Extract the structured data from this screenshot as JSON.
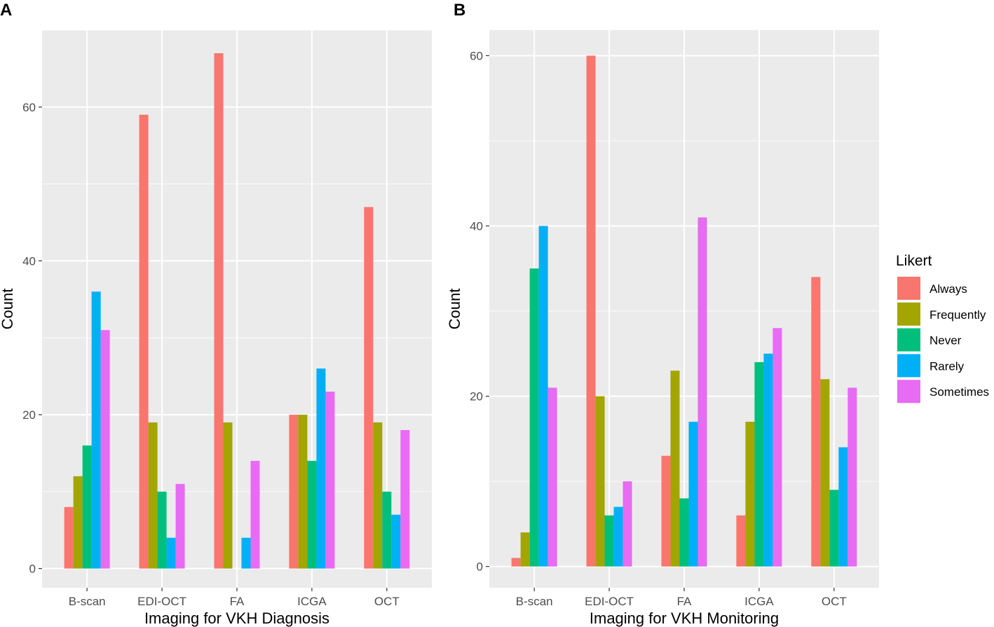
{
  "legend": {
    "title": "Likert",
    "entries": [
      "Always",
      "Frequently",
      "Never",
      "Rarely",
      "Sometimes"
    ],
    "colors": [
      "#F8766D",
      "#A3A500",
      "#00BF7D",
      "#00B0F6",
      "#E76BF3"
    ]
  },
  "chart_data": [
    {
      "type": "bar",
      "panel_label": "A",
      "title": "",
      "xlabel": "Imaging for VKH Diagnosis",
      "ylabel": "Count",
      "categories": [
        "B-scan",
        "EDI-OCT",
        "FA",
        "ICGA",
        "OCT"
      ],
      "ylim": [
        -2.5,
        70
      ],
      "yticks": [
        0,
        20,
        40,
        60
      ],
      "series": [
        {
          "name": "Always",
          "values": [
            8,
            59,
            67,
            20,
            47
          ]
        },
        {
          "name": "Frequently",
          "values": [
            12,
            19,
            19,
            20,
            19
          ]
        },
        {
          "name": "Never",
          "values": [
            16,
            10,
            0,
            14,
            10
          ]
        },
        {
          "name": "Rarely",
          "values": [
            36,
            4,
            4,
            26,
            7
          ]
        },
        {
          "name": "Sometimes",
          "values": [
            31,
            11,
            14,
            23,
            18
          ]
        }
      ]
    },
    {
      "type": "bar",
      "panel_label": "B",
      "title": "",
      "xlabel": "Imaging for VKH Monitoring",
      "ylabel": "Count",
      "categories": [
        "B-scan",
        "EDI-OCT",
        "FA",
        "ICGA",
        "OCT"
      ],
      "ylim": [
        -2.5,
        63
      ],
      "yticks": [
        0,
        20,
        40,
        60
      ],
      "series": [
        {
          "name": "Always",
          "values": [
            1,
            60,
            13,
            6,
            34
          ]
        },
        {
          "name": "Frequently",
          "values": [
            4,
            20,
            23,
            17,
            22
          ]
        },
        {
          "name": "Never",
          "values": [
            35,
            6,
            8,
            24,
            9
          ]
        },
        {
          "name": "Rarely",
          "values": [
            40,
            7,
            17,
            25,
            14
          ]
        },
        {
          "name": "Sometimes",
          "values": [
            21,
            10,
            41,
            28,
            21
          ]
        }
      ]
    }
  ]
}
